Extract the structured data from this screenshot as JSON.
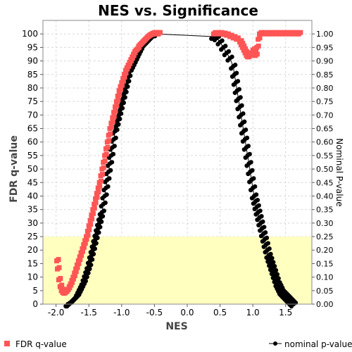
{
  "chart_data": {
    "type": "scatter",
    "title": "NES vs. Significance",
    "xlabel": "NES",
    "ylabel_left": "FDR q-value",
    "ylabel_right": "Nominal P-value",
    "xlim": [
      -2.2,
      1.9
    ],
    "ylim_left": [
      0,
      105
    ],
    "ylim_right": [
      0,
      1.05
    ],
    "x_ticks": [
      "-2.0",
      "-1.5",
      "-1.0",
      "-0.5",
      "0.0",
      "0.5",
      "1.0",
      "1.5"
    ],
    "y_left_ticks": [
      "0",
      "5",
      "10",
      "15",
      "20",
      "25",
      "30",
      "35",
      "40",
      "45",
      "50",
      "55",
      "60",
      "65",
      "70",
      "75",
      "80",
      "85",
      "90",
      "95",
      "100"
    ],
    "y_right_ticks": [
      "0.00",
      "0.05",
      "0.10",
      "0.15",
      "0.20",
      "0.25",
      "0.30",
      "0.35",
      "0.40",
      "0.45",
      "0.50",
      "0.55",
      "0.60",
      "0.65",
      "0.70",
      "0.75",
      "0.80",
      "0.85",
      "0.90",
      "0.95",
      "1.00"
    ],
    "grid": true,
    "highlight_band": {
      "y_from": 0,
      "y_to": 25,
      "color": "#ffffc0"
    },
    "series": [
      {
        "name": "FDR q-value",
        "axis": "left",
        "marker": "square",
        "color": "#ff5555",
        "x": [
          -1.99,
          -1.98,
          -1.96,
          -1.94,
          -1.92,
          -1.9,
          -1.88,
          -1.86,
          -1.84,
          -1.82,
          -1.8,
          -1.78,
          -1.76,
          -1.74,
          -1.72,
          -1.7,
          -1.68,
          -1.66,
          -1.64,
          -1.62,
          -1.6,
          -1.58,
          -1.56,
          -1.54,
          -1.52,
          -1.5,
          -1.48,
          -1.46,
          -1.44,
          -1.42,
          -1.4,
          -1.38,
          -1.36,
          -1.34,
          -1.32,
          -1.3,
          -1.28,
          -1.26,
          -1.24,
          -1.22,
          -1.2,
          -1.18,
          -1.16,
          -1.14,
          -1.12,
          -1.1,
          -1.08,
          -1.06,
          -1.04,
          -1.02,
          -1.0,
          -0.98,
          -0.96,
          -0.94,
          -0.92,
          -0.9,
          -0.88,
          -0.86,
          -0.84,
          -0.82,
          -0.8,
          -0.78,
          -0.76,
          -0.74,
          -0.72,
          -0.7,
          -0.68,
          -0.66,
          -0.64,
          -0.62,
          -0.6,
          -0.58,
          -0.56,
          -0.54,
          -0.52,
          -0.5,
          -0.48,
          -0.46,
          -0.44,
          0.4,
          0.45,
          0.5,
          0.55,
          0.6,
          0.65,
          0.7,
          0.75,
          0.8,
          0.82,
          0.84,
          0.86,
          0.88,
          0.9,
          0.92,
          0.94,
          0.96,
          0.98,
          1.0,
          1.02,
          1.04,
          1.06,
          1.08,
          1.1,
          1.15,
          1.2,
          1.25,
          1.3,
          1.35,
          1.4,
          1.45,
          1.5,
          1.55,
          1.6,
          1.65,
          1.7
        ],
        "y": [
          16,
          13,
          9,
          6.5,
          5,
          4.3,
          4,
          4.2,
          4.8,
          5.5,
          6.5,
          7.5,
          8.8,
          10,
          11.5,
          13,
          14.5,
          16,
          17.5,
          19,
          20.5,
          22,
          23.5,
          25,
          27,
          29,
          31,
          33,
          35,
          37,
          39,
          41,
          43,
          45,
          47.5,
          50,
          52.5,
          55,
          57.5,
          60,
          62.5,
          65,
          67,
          69,
          71,
          73,
          75,
          77,
          79,
          80.5,
          82,
          83.5,
          85,
          86.5,
          87.5,
          88.5,
          89.5,
          90.5,
          91.5,
          92.5,
          93.5,
          94,
          94.5,
          95.5,
          96,
          96.5,
          97,
          97.5,
          98,
          98.5,
          99,
          99.3,
          99.6,
          99.8,
          100,
          100,
          100,
          100,
          100,
          100,
          100,
          100,
          99.8,
          99.5,
          99,
          98.5,
          98,
          97,
          96,
          95,
          94,
          93,
          92,
          91.5,
          91.5,
          92,
          93,
          94,
          93,
          92,
          95,
          98,
          100,
          100,
          100,
          100,
          100,
          100,
          100,
          100,
          100,
          100,
          100,
          100,
          100
        ]
      },
      {
        "name": "nominal p-value",
        "axis": "right",
        "marker": "circle",
        "color": "#000000",
        "x": [
          -1.82,
          -1.8,
          -1.78,
          -1.76,
          -1.74,
          -1.72,
          -1.7,
          -1.68,
          -1.66,
          -1.64,
          -1.62,
          -1.6,
          -1.58,
          -1.56,
          -1.54,
          -1.52,
          -1.5,
          -1.48,
          -1.46,
          -1.44,
          -1.42,
          -1.4,
          -1.38,
          -1.36,
          -1.34,
          -1.32,
          -1.3,
          -1.28,
          -1.26,
          -1.24,
          -1.22,
          -1.2,
          -1.18,
          -1.16,
          -1.14,
          -1.12,
          -1.1,
          -1.08,
          -1.06,
          -1.04,
          -1.02,
          -1.0,
          -0.98,
          -0.96,
          -0.94,
          -0.92,
          -0.9,
          -0.88,
          -0.86,
          -0.84,
          -0.82,
          -0.8,
          -0.78,
          -0.76,
          -0.74,
          -0.72,
          -0.7,
          -0.68,
          -0.66,
          -0.64,
          -0.62,
          -0.6,
          -0.58,
          -0.56,
          -0.54,
          -0.52,
          -0.5,
          -0.48,
          -0.46,
          0.4,
          0.45,
          0.5,
          0.55,
          0.6,
          0.65,
          0.7,
          0.72,
          0.74,
          0.76,
          0.78,
          0.8,
          0.82,
          0.84,
          0.86,
          0.88,
          0.9,
          0.92,
          0.94,
          0.96,
          0.98,
          1.0,
          1.02,
          1.04,
          1.06,
          1.08,
          1.1,
          1.12,
          1.14,
          1.16,
          1.18,
          1.2,
          1.22,
          1.24,
          1.26,
          1.28,
          1.3,
          1.32,
          1.34,
          1.36,
          1.38,
          1.4,
          1.42,
          1.44,
          1.46,
          1.48,
          1.5,
          1.52,
          1.54,
          1.56,
          1.58,
          1.6,
          1.62
        ],
        "y": [
          0.0,
          0.0,
          0.005,
          0.01,
          0.015,
          0.02,
          0.025,
          0.03,
          0.04,
          0.05,
          0.06,
          0.07,
          0.08,
          0.095,
          0.11,
          0.125,
          0.14,
          0.16,
          0.18,
          0.2,
          0.22,
          0.24,
          0.26,
          0.28,
          0.3,
          0.32,
          0.34,
          0.37,
          0.4,
          0.43,
          0.46,
          0.49,
          0.52,
          0.55,
          0.58,
          0.61,
          0.64,
          0.66,
          0.68,
          0.7,
          0.72,
          0.74,
          0.76,
          0.78,
          0.8,
          0.82,
          0.84,
          0.86,
          0.87,
          0.88,
          0.89,
          0.9,
          0.91,
          0.92,
          0.93,
          0.94,
          0.95,
          0.955,
          0.96,
          0.965,
          0.97,
          0.975,
          0.98,
          0.985,
          0.99,
          0.995,
          1.0,
          1.0,
          1.0,
          0.99,
          0.985,
          0.97,
          0.95,
          0.93,
          0.91,
          0.88,
          0.85,
          0.82,
          0.79,
          0.76,
          0.73,
          0.7,
          0.67,
          0.64,
          0.61,
          0.58,
          0.55,
          0.52,
          0.49,
          0.46,
          0.43,
          0.4,
          0.38,
          0.36,
          0.34,
          0.32,
          0.3,
          0.28,
          0.26,
          0.24,
          0.22,
          0.2,
          0.18,
          0.165,
          0.15,
          0.135,
          0.12,
          0.105,
          0.09,
          0.075,
          0.065,
          0.055,
          0.045,
          0.04,
          0.035,
          0.03,
          0.025,
          0.02,
          0.015,
          0.01,
          0.005,
          0.0
        ]
      }
    ]
  }
}
